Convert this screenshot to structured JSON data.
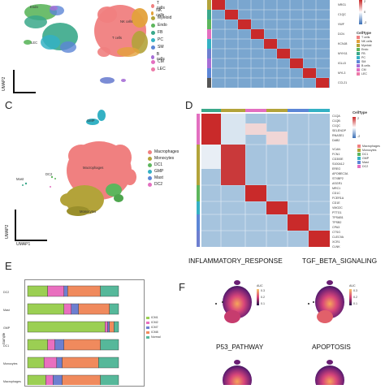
{
  "panels": {
    "A": {
      "letter": "",
      "labels": [
        "T cells",
        "NK cells",
        "Myeloid",
        "Endo",
        "FB",
        "PC",
        "SM",
        "B cells",
        "CM",
        "LEC"
      ],
      "colors": [
        "#f08080",
        "#e3a13b",
        "#b3a33a",
        "#5db65d",
        "#3aa88a",
        "#34b1c4",
        "#5c86d6",
        "#a66ed6",
        "#e36fc0",
        "#ec7aa8"
      ],
      "cluster_text": {
        "endo": "Endo",
        "lec": "LEC",
        "nk": "NK cells",
        "tcells": "T cells"
      },
      "axis_x": "UMAP1",
      "axis_y": "UMAP2"
    },
    "B": {
      "genes": [
        "NRG1",
        "C1QC",
        "VWF",
        "DCN",
        "KCNJ8",
        "MYH11",
        "IGLL5",
        "MYL3",
        "CCL21"
      ],
      "legend_title": "CellType",
      "legend_items": [
        "T cells",
        "NK cells",
        "Myeloid",
        "Endo",
        "FB",
        "PC",
        "SM",
        "B cells",
        "CM",
        "LEC"
      ],
      "colorbar_labels": [
        "2",
        "1",
        "0",
        "-1",
        "-2"
      ]
    },
    "C": {
      "letter": "C",
      "legend_items": [
        "Macrophages",
        "Monocytes",
        "DC1",
        "GMP",
        "Mast",
        "DC2"
      ],
      "legend_colors": [
        "#f08080",
        "#b3a33a",
        "#5db65d",
        "#34b1c4",
        "#5c86d6",
        "#e36fc0"
      ],
      "cluster_text": {
        "gmp": "GMP",
        "dc2": "DC2",
        "mast": "Mast",
        "macro": "Macrophages",
        "mono": "Monocytes"
      },
      "axis_x": "UMAP1",
      "axis_y": "UMAP2"
    },
    "D": {
      "letter": "D",
      "genes": [
        "C1QA",
        "C1QB",
        "C1QC",
        "SELENOP",
        "RNASE1",
        "DAB2",
        "VCAN",
        "FCN1",
        "CD300E",
        "S100A12",
        "EREG",
        "APOBEC3A",
        "STXBP2",
        "ASGR1",
        "MRC1",
        "CD1C",
        "FCER1A",
        "CD1E",
        "VMO2C",
        "PTTG1",
        "TPSAB1",
        "TPSB2",
        "CPA3",
        "CTSG",
        "CLEC9A",
        "XCR1",
        "CLNK"
      ],
      "legend_title": "CellType",
      "legend_items": [
        "Macrophages",
        "Monocytes",
        "DC1",
        "GMP",
        "Mast",
        "DC2"
      ],
      "colorbar_labels": [
        "2",
        "1",
        "0",
        "-1",
        "-2"
      ]
    },
    "E": {
      "letter": "E",
      "rows": [
        "DC2",
        "Mast",
        "GMP",
        "DC1",
        "Monocytes",
        "Macrophages"
      ],
      "ylabel": "Sample",
      "legend_items": [
        "ICM1",
        "ICM2",
        "ICM7",
        "ICM8",
        "Normal"
      ],
      "segment_colors": [
        "#9bcf53",
        "#e96fbf",
        "#6d7fd0",
        "#f08a5d",
        "#56b89a"
      ],
      "fractions": [
        [
          0.22,
          0.18,
          0.04,
          0.36,
          0.2
        ],
        [
          0.4,
          0.08,
          0.08,
          0.34,
          0.1
        ],
        [
          0.85,
          0.03,
          0.02,
          0.05,
          0.05
        ],
        [
          0.22,
          0.08,
          0.1,
          0.4,
          0.2
        ],
        [
          0.18,
          0.14,
          0.06,
          0.4,
          0.22
        ],
        [
          0.2,
          0.08,
          0.1,
          0.42,
          0.2
        ]
      ]
    },
    "F": {
      "letter": "F",
      "titles": [
        "INFLAMMATORY_RESPONSE",
        "TGF_BETA_SIGNALING",
        "P53_PATHWAY",
        "APOPTOSIS"
      ],
      "legend_title": "AUC",
      "legend_ticks": [
        "0.3",
        "0.2",
        "0.1"
      ]
    }
  }
}
